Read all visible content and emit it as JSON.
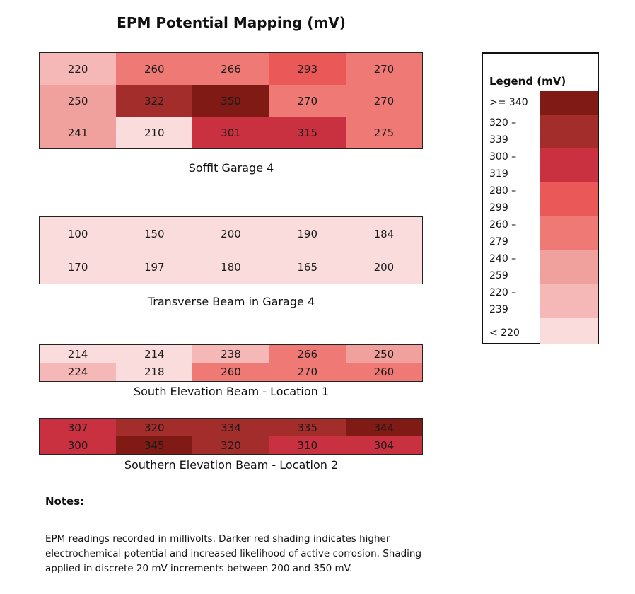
{
  "title": "EPM Potential Mapping (mV)",
  "chart_data": {
    "type": "heatmap",
    "unit": "mV",
    "panels": [
      {
        "name": "Soffit Garage 4",
        "rows": [
          [
            220,
            260,
            266,
            293,
            270
          ],
          [
            250,
            322,
            350,
            270,
            270
          ],
          [
            241,
            210,
            301,
            315,
            275
          ]
        ]
      },
      {
        "name": "Transverse Beam in Garage 4",
        "rows": [
          [
            100,
            150,
            200,
            190,
            184
          ],
          [
            170,
            197,
            180,
            165,
            200
          ]
        ]
      },
      {
        "name": "South Elevation Beam - Location 1",
        "rows": [
          [
            214,
            214,
            238,
            266,
            250
          ],
          [
            224,
            218,
            260,
            270,
            260
          ]
        ]
      },
      {
        "name": "Southern Elevation Beam - Location 2",
        "rows": [
          [
            307,
            320,
            334,
            335,
            344
          ],
          [
            300,
            345,
            320,
            310,
            304
          ]
        ]
      }
    ],
    "legend": {
      "title": "Legend (mV)",
      "bins": [
        {
          "label": ">= 340",
          "min": 340,
          "max": 9999,
          "color": "#7f1a14"
        },
        {
          "label": "320 – 339",
          "min": 320,
          "max": 339,
          "color": "#a32d2a"
        },
        {
          "label": "300 – 319",
          "min": 300,
          "max": 319,
          "color": "#c93040"
        },
        {
          "label": "280 – 299",
          "min": 280,
          "max": 299,
          "color": "#ea5957"
        },
        {
          "label": "260 – 279",
          "min": 260,
          "max": 279,
          "color": "#ef7a75"
        },
        {
          "label": "240 – 259",
          "min": 240,
          "max": 259,
          "color": "#f0a19e"
        },
        {
          "label": "220 – 239",
          "min": 220,
          "max": 239,
          "color": "#f5b8b6"
        },
        {
          "label": "< 220",
          "min": -9999,
          "max": 219,
          "color": "#f9dcdb"
        }
      ]
    }
  },
  "notes": {
    "title": "Notes:",
    "text": "EPM readings recorded in millivolts. Darker red shading indicates higher electrochemical potential and increased likelihood of active corrosion. Shading applied in discrete 20 mV increments between 200 and 350 mV."
  }
}
